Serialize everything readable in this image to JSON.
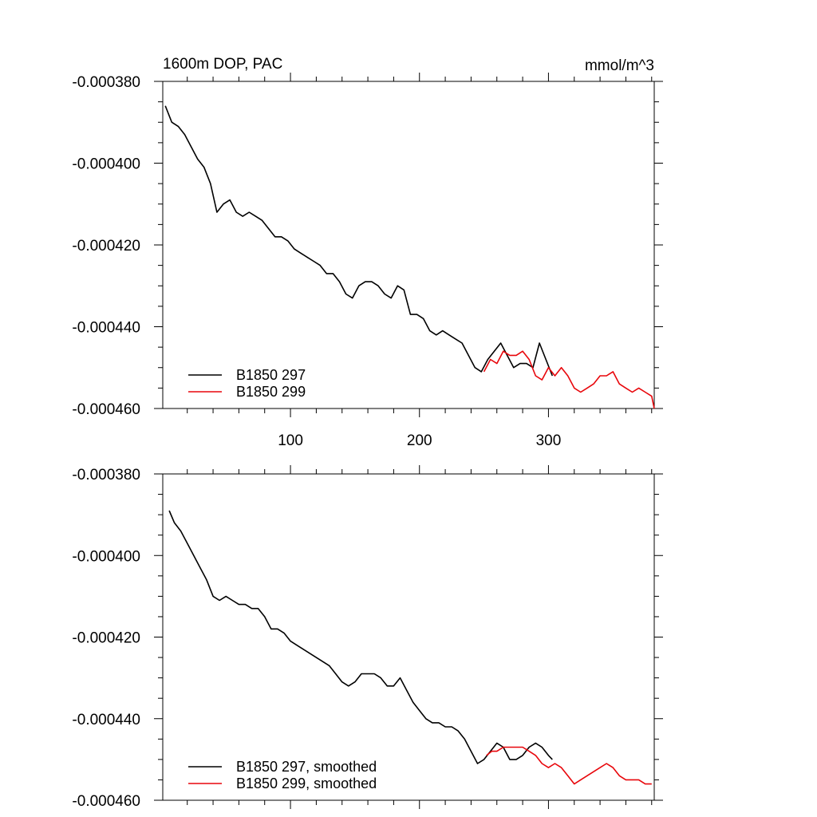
{
  "chart_data": [
    {
      "type": "line",
      "title": "1600m DOP, PAC",
      "units": "mmol/m^3",
      "xlim": [
        1,
        382
      ],
      "ylim": [
        -0.00046,
        -0.00038
      ],
      "xticks": [
        100,
        200,
        300
      ],
      "xtick_labels": [
        "100",
        "200",
        "300"
      ],
      "yticks": [
        -0.00038,
        -0.0004,
        -0.00042,
        -0.00044,
        -0.00046
      ],
      "ytick_labels": [
        "-0.000380",
        "-0.000400",
        "-0.000420",
        "-0.000440",
        "-0.000460"
      ],
      "legend_position": "bottom-left",
      "series": [
        {
          "name": "B1850 297",
          "color": "#000000",
          "x": [
            3,
            8,
            13,
            18,
            23,
            28,
            33,
            38,
            43,
            48,
            53,
            58,
            63,
            68,
            73,
            78,
            83,
            88,
            93,
            98,
            103,
            108,
            113,
            118,
            123,
            128,
            133,
            138,
            143,
            148,
            153,
            158,
            163,
            168,
            173,
            178,
            183,
            188,
            193,
            198,
            203,
            208,
            213,
            218,
            223,
            228,
            233,
            238,
            243,
            248,
            253,
            258,
            263,
            268,
            273,
            278,
            283,
            288,
            293,
            298,
            303
          ],
          "y": [
            -0.000386,
            -0.00039,
            -0.000391,
            -0.000393,
            -0.000396,
            -0.000399,
            -0.000401,
            -0.000405,
            -0.000412,
            -0.00041,
            -0.000409,
            -0.000412,
            -0.000413,
            -0.000412,
            -0.000413,
            -0.000414,
            -0.000416,
            -0.000418,
            -0.000418,
            -0.000419,
            -0.000421,
            -0.000422,
            -0.000423,
            -0.000424,
            -0.000425,
            -0.000427,
            -0.000427,
            -0.000429,
            -0.000432,
            -0.000433,
            -0.00043,
            -0.000429,
            -0.000429,
            -0.00043,
            -0.000432,
            -0.000433,
            -0.00043,
            -0.000431,
            -0.000437,
            -0.000437,
            -0.000438,
            -0.000441,
            -0.000442,
            -0.000441,
            -0.000442,
            -0.000443,
            -0.000444,
            -0.000447,
            -0.00045,
            -0.000451,
            -0.000448,
            -0.000446,
            -0.000444,
            -0.000447,
            -0.00045,
            -0.000449,
            -0.000449,
            -0.00045,
            -0.000444,
            -0.000448,
            -0.000452
          ]
        },
        {
          "name": "B1850 299",
          "color": "#e8060b",
          "x": [
            250,
            255,
            260,
            265,
            270,
            275,
            280,
            285,
            290,
            295,
            300,
            305,
            310,
            315,
            320,
            325,
            330,
            335,
            340,
            345,
            350,
            355,
            360,
            365,
            370,
            375,
            380,
            382
          ],
          "y": [
            -0.000451,
            -0.000448,
            -0.000449,
            -0.000446,
            -0.000447,
            -0.000447,
            -0.000446,
            -0.000448,
            -0.000452,
            -0.000453,
            -0.00045,
            -0.000452,
            -0.00045,
            -0.000452,
            -0.000455,
            -0.000456,
            -0.000455,
            -0.000454,
            -0.000452,
            -0.000452,
            -0.000451,
            -0.000454,
            -0.000455,
            -0.000456,
            -0.000455,
            -0.000456,
            -0.000457,
            -0.00046
          ]
        }
      ]
    },
    {
      "type": "line",
      "title": "",
      "units": "",
      "xlim": [
        1,
        382
      ],
      "ylim": [
        -0.00046,
        -0.00038
      ],
      "xticks": [
        100,
        200,
        300
      ],
      "xtick_labels": [
        "",
        "",
        ""
      ],
      "yticks": [
        -0.00038,
        -0.0004,
        -0.00042,
        -0.00044,
        -0.00046
      ],
      "ytick_labels": [
        "-0.000380",
        "-0.000400",
        "-0.000420",
        "-0.000440",
        "-0.000460"
      ],
      "legend_position": "bottom-left",
      "series": [
        {
          "name": "B1850 297, smoothed",
          "color": "#000000",
          "x": [
            6,
            10,
            15,
            20,
            25,
            30,
            35,
            40,
            45,
            50,
            55,
            60,
            65,
            70,
            75,
            80,
            85,
            90,
            95,
            100,
            105,
            110,
            115,
            120,
            125,
            130,
            135,
            140,
            145,
            150,
            155,
            160,
            165,
            170,
            175,
            180,
            185,
            190,
            195,
            200,
            205,
            210,
            215,
            220,
            225,
            230,
            235,
            240,
            245,
            250,
            255,
            260,
            265,
            270,
            275,
            280,
            285,
            290,
            295,
            300,
            303
          ],
          "y": [
            -0.000389,
            -0.000392,
            -0.000394,
            -0.000397,
            -0.0004,
            -0.000403,
            -0.000406,
            -0.00041,
            -0.000411,
            -0.00041,
            -0.000411,
            -0.000412,
            -0.000412,
            -0.000413,
            -0.000413,
            -0.000415,
            -0.000418,
            -0.000418,
            -0.000419,
            -0.000421,
            -0.000422,
            -0.000423,
            -0.000424,
            -0.000425,
            -0.000426,
            -0.000427,
            -0.000429,
            -0.000431,
            -0.000432,
            -0.000431,
            -0.000429,
            -0.000429,
            -0.000429,
            -0.00043,
            -0.000432,
            -0.000432,
            -0.00043,
            -0.000433,
            -0.000436,
            -0.000438,
            -0.00044,
            -0.000441,
            -0.000441,
            -0.000442,
            -0.000442,
            -0.000443,
            -0.000445,
            -0.000448,
            -0.000451,
            -0.00045,
            -0.000448,
            -0.000446,
            -0.000447,
            -0.00045,
            -0.00045,
            -0.000449,
            -0.000447,
            -0.000446,
            -0.000447,
            -0.000449,
            -0.00045
          ]
        },
        {
          "name": "B1850 299, smoothed",
          "color": "#e8060b",
          "x": [
            252,
            256,
            260,
            265,
            270,
            275,
            280,
            285,
            290,
            295,
            300,
            305,
            310,
            315,
            320,
            325,
            330,
            335,
            340,
            345,
            350,
            355,
            360,
            365,
            370,
            375,
            380
          ],
          "y": [
            -0.000449,
            -0.000448,
            -0.000448,
            -0.000447,
            -0.000447,
            -0.000447,
            -0.000447,
            -0.000448,
            -0.000449,
            -0.000451,
            -0.000452,
            -0.000451,
            -0.000452,
            -0.000454,
            -0.000456,
            -0.000455,
            -0.000454,
            -0.000453,
            -0.000452,
            -0.000451,
            -0.000452,
            -0.000454,
            -0.000455,
            -0.000455,
            -0.000455,
            -0.000456,
            -0.000456
          ]
        }
      ]
    }
  ]
}
